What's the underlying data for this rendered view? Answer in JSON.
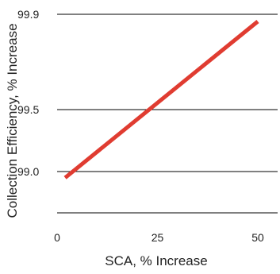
{
  "chart_data": {
    "type": "line",
    "title": "",
    "xlabel": "SCA, % Increase",
    "ylabel": "Collection Efficiency, % Increase",
    "xlim": [
      0,
      50
    ],
    "ylim": [
      98.9,
      99.9
    ],
    "x_ticks": [
      0,
      25,
      50
    ],
    "x_tick_labels": [
      "0",
      "25",
      "50"
    ],
    "y_ticks": [
      99.0,
      99.5,
      99.9
    ],
    "y_tick_labels": [
      "99.0",
      "99.5",
      "99.9"
    ],
    "grid": {
      "horizontal": true,
      "vertical": false
    },
    "series": [
      {
        "color": "#e03c31",
        "x": [
          2,
          50
        ],
        "y": [
          98.95,
          99.87
        ]
      }
    ],
    "colors": {
      "line": "#e03c31",
      "grid": "#000000",
      "text": "#222222"
    }
  }
}
